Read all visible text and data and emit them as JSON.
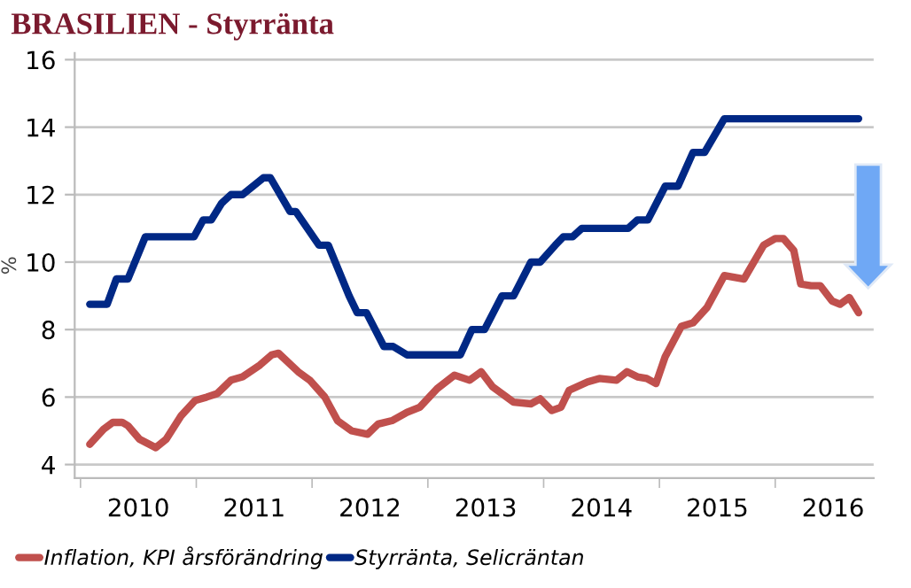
{
  "chart_data": {
    "type": "line",
    "title": "BRASILIEN - Styrränta",
    "ylabel": "%",
    "series": [
      {
        "name": "Inflation, KPI årsförändring",
        "color": "#c0504d",
        "x": [
          2010.08,
          2010.2,
          2010.28,
          2010.36,
          2010.41,
          2010.51,
          2010.65,
          2010.74,
          2010.87,
          2010.99,
          2011.09,
          2011.18,
          2011.3,
          2011.4,
          2011.55,
          2011.65,
          2011.71,
          2011.88,
          2011.98,
          2012.11,
          2012.22,
          2012.34,
          2012.48,
          2012.57,
          2012.69,
          2012.82,
          2012.93,
          2013.08,
          2013.23,
          2013.36,
          2013.46,
          2013.56,
          2013.74,
          2013.89,
          2013.97,
          2014.07,
          2014.15,
          2014.22,
          2014.38,
          2014.48,
          2014.63,
          2014.72,
          2014.81,
          2014.89,
          2014.97,
          2015.05,
          2015.19,
          2015.29,
          2015.41,
          2015.56,
          2015.73,
          2015.9,
          2016.0,
          2016.07,
          2016.16,
          2016.22,
          2016.31,
          2016.39,
          2016.49,
          2016.56,
          2016.64,
          2016.72
        ],
        "values": [
          4.6,
          5.05,
          5.25,
          5.25,
          5.15,
          4.75,
          4.5,
          4.75,
          5.45,
          5.9,
          6.0,
          6.1,
          6.5,
          6.6,
          6.95,
          7.25,
          7.3,
          6.75,
          6.5,
          6.0,
          5.3,
          5.0,
          4.9,
          5.2,
          5.3,
          5.55,
          5.7,
          6.25,
          6.65,
          6.5,
          6.75,
          6.3,
          5.85,
          5.8,
          5.95,
          5.6,
          5.7,
          6.2,
          6.45,
          6.55,
          6.5,
          6.75,
          6.6,
          6.55,
          6.4,
          7.2,
          8.1,
          8.2,
          8.65,
          9.6,
          9.5,
          10.5,
          10.7,
          10.7,
          10.35,
          9.35,
          9.3,
          9.3,
          8.85,
          8.75,
          8.95,
          8.5
        ]
      },
      {
        "name": "Styrränta, Selicräntan",
        "color": "#002885",
        "x": [
          2010.08,
          2010.23,
          2010.31,
          2010.41,
          2010.56,
          2010.98,
          2011.06,
          2011.13,
          2011.22,
          2011.3,
          2011.4,
          2011.58,
          2011.64,
          2011.81,
          2011.86,
          2012.06,
          2012.14,
          2012.32,
          2012.39,
          2012.47,
          2012.62,
          2012.7,
          2012.82,
          2013.28,
          2013.38,
          2013.49,
          2013.64,
          2013.74,
          2013.89,
          2013.97,
          2014.1,
          2014.17,
          2014.25,
          2014.33,
          2014.73,
          2014.81,
          2014.9,
          2015.05,
          2015.16,
          2015.29,
          2015.39,
          2015.56,
          2016.72
        ],
        "values": [
          8.75,
          8.75,
          9.5,
          9.5,
          10.75,
          10.75,
          11.25,
          11.25,
          11.75,
          12,
          12,
          12.5,
          12.5,
          11.5,
          11.5,
          10.5,
          10.5,
          9,
          8.5,
          8.5,
          7.5,
          7.5,
          7.25,
          7.25,
          8,
          8,
          9,
          9,
          10,
          10,
          10.5,
          10.75,
          10.75,
          11,
          11,
          11.25,
          11.25,
          12.25,
          12.25,
          13.25,
          13.25,
          14.25,
          14.25
        ]
      }
    ],
    "xlim": [
      2009.95,
      2016.85
    ],
    "xticks": [
      {
        "value": 2010,
        "label": null
      },
      {
        "value": 2010.5,
        "label": "2010"
      },
      {
        "value": 2011,
        "label": null
      },
      {
        "value": 2011.5,
        "label": "2011"
      },
      {
        "value": 2012,
        "label": null
      },
      {
        "value": 2012.5,
        "label": "2012"
      },
      {
        "value": 2013,
        "label": null
      },
      {
        "value": 2013.5,
        "label": "2013"
      },
      {
        "value": 2014,
        "label": null
      },
      {
        "value": 2014.5,
        "label": "2014"
      },
      {
        "value": 2015,
        "label": null
      },
      {
        "value": 2015.5,
        "label": "2015"
      },
      {
        "value": 2016,
        "label": null
      },
      {
        "value": 2016.5,
        "label": "2016"
      }
    ],
    "ylim": [
      3.6,
      16.2
    ],
    "yticks": [
      4,
      6,
      8,
      10,
      12,
      14,
      16
    ],
    "grid": "y",
    "legend": "bottom left",
    "marker": "none",
    "line_style": "solid"
  }
}
